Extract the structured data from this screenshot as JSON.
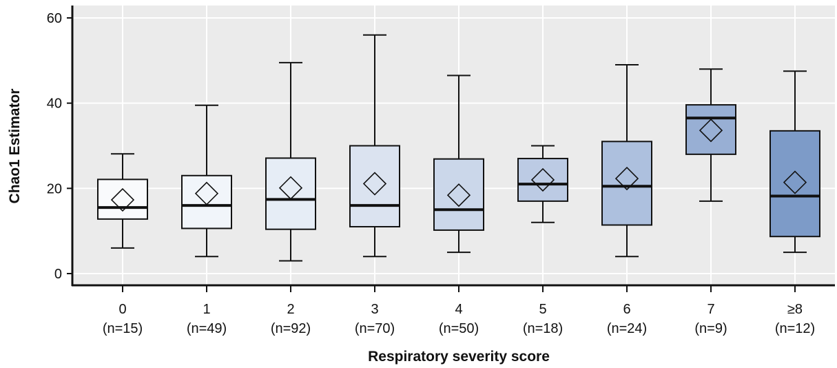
{
  "chart_data": {
    "type": "box",
    "xlabel": "Respiratory severity score",
    "ylabel": "Chao1 Estimator",
    "ylim": [
      -2,
      62
    ],
    "yticks": [
      0,
      20,
      40,
      60
    ],
    "grid": true,
    "legend": "none",
    "categories": [
      {
        "label": "0",
        "n": "(n=15)"
      },
      {
        "label": "1",
        "n": "(n=49)"
      },
      {
        "label": "2",
        "n": "(n=92)"
      },
      {
        "label": "3",
        "n": "(n=70)"
      },
      {
        "label": "4",
        "n": "(n=50)"
      },
      {
        "label": "5",
        "n": "(n=18)"
      },
      {
        "label": "6",
        "n": "(n=24)"
      },
      {
        "label": "7",
        "n": "(n=9)"
      },
      {
        "label": "≥8",
        "n": "(n=12)"
      }
    ],
    "boxes": [
      {
        "min": 6,
        "q1": 12.8,
        "median": 15.5,
        "q3": 22.1,
        "max": 28.1,
        "mean": 17.3
      },
      {
        "min": 4,
        "q1": 10.6,
        "median": 16.0,
        "q3": 23.0,
        "max": 39.5,
        "mean": 18.8
      },
      {
        "min": 3,
        "q1": 10.4,
        "median": 17.4,
        "q3": 27.1,
        "max": 49.5,
        "mean": 20.1
      },
      {
        "min": 4,
        "q1": 11.0,
        "median": 16.0,
        "q3": 30.0,
        "max": 56.0,
        "mean": 21.1
      },
      {
        "min": 5,
        "q1": 10.2,
        "median": 15.0,
        "q3": 26.9,
        "max": 46.5,
        "mean": 18.4
      },
      {
        "min": 12,
        "q1": 17.0,
        "median": 21.0,
        "q3": 27.0,
        "max": 30.0,
        "mean": 22.0
      },
      {
        "min": 4,
        "q1": 11.4,
        "median": 20.5,
        "q3": 31.0,
        "max": 49.0,
        "mean": 22.3
      },
      {
        "min": 17,
        "q1": 28.0,
        "median": 36.5,
        "q3": 39.6,
        "max": 48.0,
        "mean": 33.6
      },
      {
        "min": 5,
        "q1": 8.7,
        "median": 18.2,
        "q3": 33.5,
        "max": 47.5,
        "mean": 21.4
      }
    ],
    "box_colors": [
      "#f9fafc",
      "#f1f5fa",
      "#e6edf6",
      "#dbe3f0",
      "#cbd7ea",
      "#bccbe4",
      "#adc0de",
      "#98afd4",
      "#7d9bc8"
    ],
    "plot_background": "#ebebeb",
    "grid_color": "#ffffff"
  }
}
